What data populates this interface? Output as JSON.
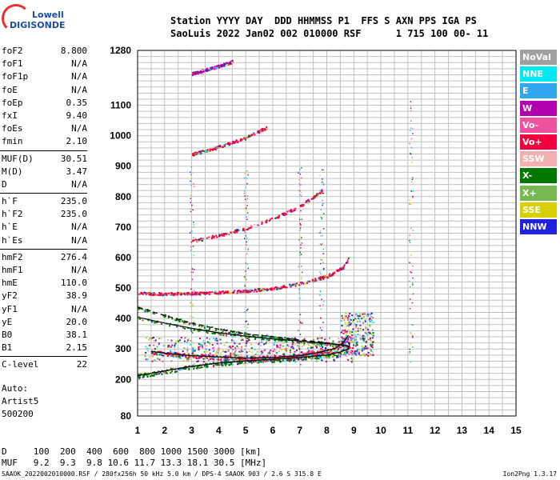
{
  "logo": {
    "line1": "Lowell",
    "line2": "DIGISONDE"
  },
  "header": {
    "line1": "Station YYYY DAY  DDD HHMMSS P1  FFS S AXN PPS IGA PS",
    "line2": "SaoLuis 2022 Jan02 002 010000 RSF      1 715 100 00- 11"
  },
  "params": [
    {
      "name": "foF2",
      "value": "8.800"
    },
    {
      "name": "foF1",
      "value": "N/A"
    },
    {
      "name": "foF1p",
      "value": "N/A"
    },
    {
      "name": "foE",
      "value": "N/A"
    },
    {
      "name": "foEp",
      "value": "0.35"
    },
    {
      "name": "fxI",
      "value": "9.40"
    },
    {
      "name": "foEs",
      "value": "N/A"
    },
    {
      "name": "fmin",
      "value": "2.10"
    },
    {
      "name": "MUF(D)",
      "value": "30.51"
    },
    {
      "name": "M(D)",
      "value": "3.47"
    },
    {
      "name": "D",
      "value": "N/A"
    },
    {
      "name": "h`F",
      "value": "235.0"
    },
    {
      "name": "h`F2",
      "value": "235.0"
    },
    {
      "name": "h`E",
      "value": "N/A"
    },
    {
      "name": "h`Es",
      "value": "N/A"
    },
    {
      "name": "hmF2",
      "value": "276.4"
    },
    {
      "name": "hmF1",
      "value": "N/A"
    },
    {
      "name": "hmE",
      "value": "110.0"
    },
    {
      "name": "yF2",
      "value": "38.9"
    },
    {
      "name": "yF1",
      "value": "N/A"
    },
    {
      "name": "yE",
      "value": "20.0"
    },
    {
      "name": "B0",
      "value": "38.1"
    },
    {
      "name": "B1",
      "value": "2.15"
    },
    {
      "name": "C-level",
      "value": "22"
    }
  ],
  "extra": {
    "auto": "Auto:",
    "artist": "Artist5",
    "code": "500200"
  },
  "legend": [
    {
      "label": "NoVal",
      "color": "#a0a0a0"
    },
    {
      "label": "NNE",
      "color": "#00e8f0"
    },
    {
      "label": "E",
      "color": "#30a8f0"
    },
    {
      "label": "W",
      "color": "#b000b0"
    },
    {
      "label": "Vo-",
      "color": "#f050a0"
    },
    {
      "label": "Vo+",
      "color": "#f0003c"
    },
    {
      "label": "SSW",
      "color": "#f4b0b0"
    },
    {
      "label": "X-",
      "color": "#007800"
    },
    {
      "label": "X+",
      "color": "#78b850"
    },
    {
      "label": "SSE",
      "color": "#d8d000"
    },
    {
      "label": "NNW",
      "color": "#2020e0"
    }
  ],
  "muf_table": {
    "d_row": "D     100  200  400  600  800 1000 1500 3000 [km]",
    "muf_row": "MUF   9.2  9.3  9.8 10.6 11.7 13.3 18.1 30.5 [MHz]"
  },
  "footer": {
    "left": "SAAOK_2022002010000.RSF / 280fx256h 50 kHz 5.0 km / DPS-4 SAAOK 903 / 2.6 S 315.8 E",
    "right": "Ion2Png 1.3.17"
  },
  "chart_data": {
    "type": "scatter",
    "title": "",
    "xlabel": "",
    "ylabel": "",
    "xlim": [
      1,
      15
    ],
    "ylim": [
      80,
      1280
    ],
    "x_ticks": [
      1,
      2,
      3,
      4,
      5,
      6,
      7,
      8,
      9,
      10,
      11,
      12,
      13,
      14,
      15
    ],
    "y_ticks": [
      80,
      200,
      300,
      400,
      500,
      600,
      700,
      800,
      900,
      1000,
      1100,
      1280
    ],
    "grid": true,
    "traces": [
      {
        "name": "X-",
        "values": [
          [
            1.0,
            212
          ],
          [
            2.0,
            228
          ],
          [
            3.0,
            243
          ],
          [
            4.0,
            254
          ],
          [
            5.0,
            261
          ],
          [
            6.0,
            266
          ],
          [
            7.0,
            272
          ],
          [
            8.0,
            280
          ],
          [
            8.5,
            290
          ],
          [
            8.8,
            300
          ],
          [
            8.85,
            320
          ]
        ]
      },
      {
        "name": "Vo+",
        "values": [
          [
            1.5,
            292
          ],
          [
            2.0,
            286
          ],
          [
            3.0,
            278
          ],
          [
            4.0,
            274
          ],
          [
            5.0,
            270
          ],
          [
            6.0,
            272
          ],
          [
            7.0,
            278
          ],
          [
            7.8,
            290
          ],
          [
            8.3,
            302
          ],
          [
            8.6,
            320
          ],
          [
            8.8,
            345
          ]
        ]
      },
      {
        "name": "Vo+",
        "values": [
          [
            1.0,
            485
          ],
          [
            2.0,
            482
          ],
          [
            3.0,
            484
          ],
          [
            4.0,
            487
          ],
          [
            5.0,
            492
          ],
          [
            6.0,
            500
          ],
          [
            7.0,
            516
          ],
          [
            8.0,
            540
          ],
          [
            8.6,
            570
          ],
          [
            8.8,
            600
          ]
        ]
      },
      {
        "name": "X-",
        "values": [
          [
            1.0,
            437
          ],
          [
            2.0,
            410
          ],
          [
            3.0,
            385
          ],
          [
            4.0,
            365
          ],
          [
            5.0,
            350
          ],
          [
            6.0,
            340
          ],
          [
            7.0,
            330
          ],
          [
            8.0,
            320
          ],
          [
            8.8,
            310
          ]
        ]
      },
      {
        "name": "X-",
        "values": [
          [
            1.0,
            404
          ],
          [
            2.0,
            385
          ],
          [
            3.0,
            368
          ],
          [
            4.0,
            353
          ],
          [
            5.0,
            342
          ],
          [
            6.0,
            333
          ],
          [
            7.0,
            326
          ],
          [
            8.0,
            318
          ],
          [
            8.8,
            310
          ]
        ]
      },
      {
        "name": "Vo+",
        "values": [
          [
            3.0,
            655
          ],
          [
            4.0,
            675
          ],
          [
            5.0,
            698
          ],
          [
            6.0,
            730
          ],
          [
            7.0,
            770
          ],
          [
            7.8,
            822
          ]
        ]
      },
      {
        "name": "Vo+",
        "values": [
          [
            3.0,
            940
          ],
          [
            4.0,
            965
          ],
          [
            5.0,
            995
          ],
          [
            5.8,
            1030
          ]
        ]
      },
      {
        "name": "W",
        "values": [
          [
            3.0,
            1205
          ],
          [
            4.0,
            1230
          ],
          [
            4.5,
            1245
          ]
        ]
      }
    ]
  }
}
